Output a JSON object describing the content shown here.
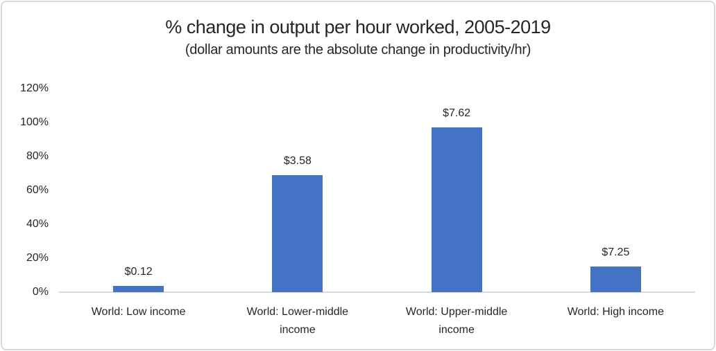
{
  "chart_data": {
    "type": "bar",
    "title": "% change in output per hour worked, 2005-2019",
    "subtitle": "(dollar amounts are the absolute change in productivity/hr)",
    "categories": [
      "World: Low income",
      "World: Lower-middle income",
      "World: Upper-middle income",
      "World: High income"
    ],
    "series": [
      {
        "name": "% change in output per hour worked",
        "values_pct": [
          3.7,
          69,
          97,
          15
        ],
        "data_labels": [
          "$0.12",
          "$3.58",
          "$7.62",
          "$7.25"
        ]
      }
    ],
    "xlabel": "",
    "ylabel": "",
    "ylim": [
      0,
      120
    ],
    "ytick_labels": [
      "0%",
      "20%",
      "40%",
      "60%",
      "80%",
      "100%",
      "120%"
    ],
    "grid": false,
    "legend_position": "none",
    "colors": {
      "bar": "#4472C4",
      "axis_line": "#D9D9D9",
      "frame_border": "#D9D9D9",
      "text": "#262626",
      "background": "#FFFFFF"
    }
  }
}
